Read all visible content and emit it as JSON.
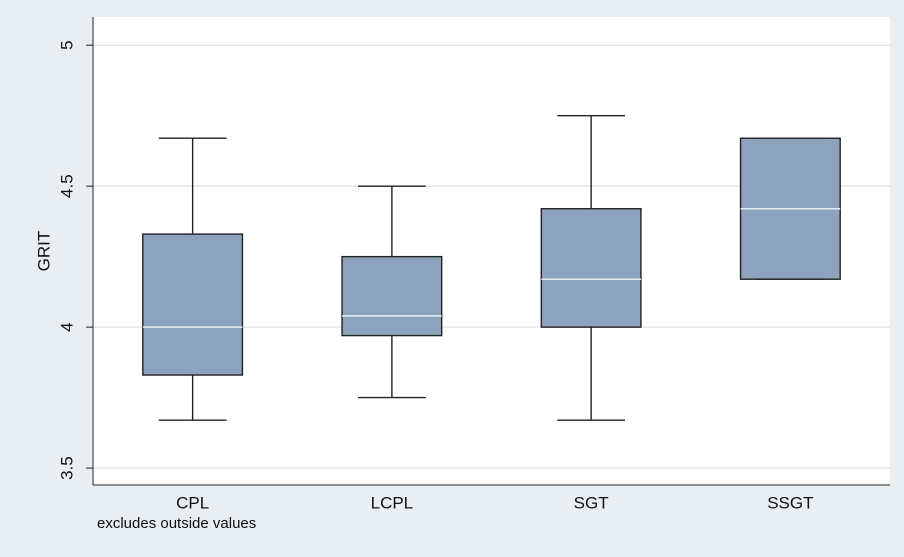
{
  "chart_data": {
    "type": "box",
    "y_label": "GRIT",
    "note": "excludes outside values",
    "categories": [
      "CPL",
      "LCPL",
      "SGT",
      "SSGT"
    ],
    "boxes": [
      {
        "low": 3.67,
        "q1": 3.83,
        "median": 4.0,
        "q3": 4.33,
        "high": 4.67
      },
      {
        "low": 3.75,
        "q1": 3.97,
        "median": 4.04,
        "q3": 4.25,
        "high": 4.5
      },
      {
        "low": 3.67,
        "q1": 4.0,
        "median": 4.17,
        "q3": 4.42,
        "high": 4.75
      },
      {
        "low": 4.17,
        "q1": 4.17,
        "median": 4.42,
        "q3": 4.67,
        "high": 4.67
      }
    ],
    "color": "#8da3bd",
    "ylim": [
      3.44,
      5.1
    ],
    "yticks": [
      3.5,
      4,
      4.5,
      5
    ],
    "grid": true
  }
}
